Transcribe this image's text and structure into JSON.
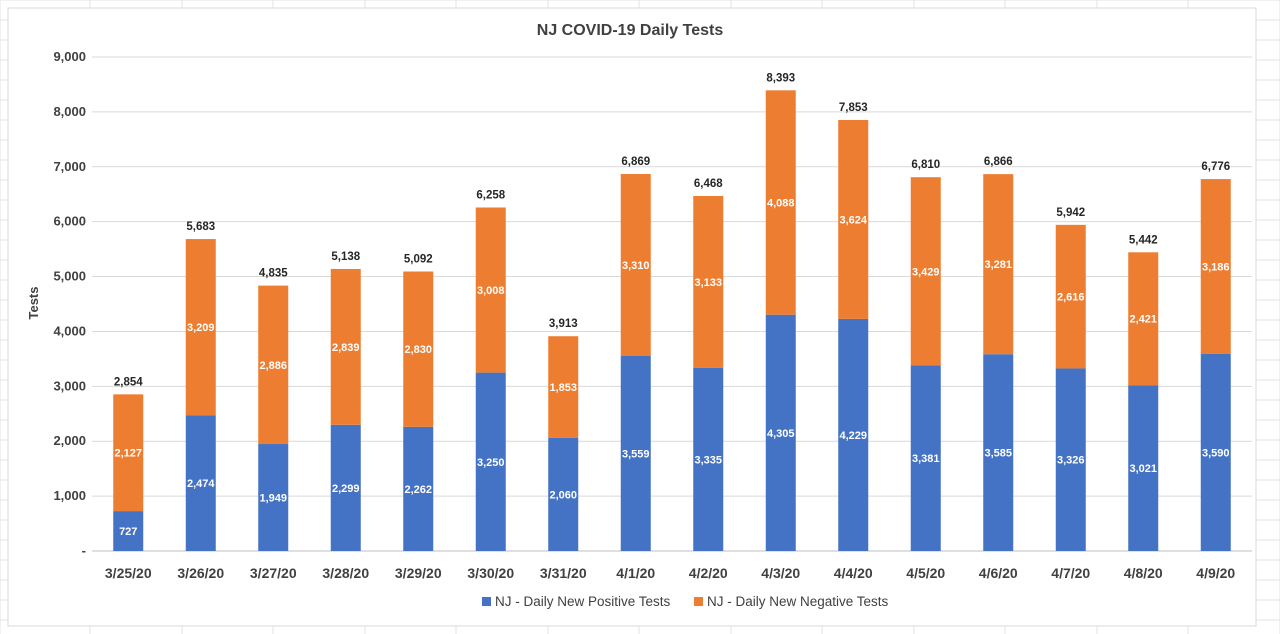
{
  "chart_data": {
    "type": "bar",
    "stacked": true,
    "title": "NJ COVID-19 Daily Tests",
    "xlabel": "",
    "ylabel": "Tests",
    "ylim": [
      0,
      9000
    ],
    "yticks": [
      0,
      1000,
      2000,
      3000,
      4000,
      5000,
      6000,
      7000,
      8000,
      9000
    ],
    "ytick_labels": [
      "-",
      "1,000",
      "2,000",
      "3,000",
      "4,000",
      "5,000",
      "6,000",
      "7,000",
      "8,000",
      "9,000"
    ],
    "grid": true,
    "legend_position": "bottom",
    "categories": [
      "3/25/20",
      "3/26/20",
      "3/27/20",
      "3/28/20",
      "3/29/20",
      "3/30/20",
      "3/31/20",
      "4/1/20",
      "4/2/20",
      "4/3/20",
      "4/4/20",
      "4/5/20",
      "4/6/20",
      "4/7/20",
      "4/8/20",
      "4/9/20"
    ],
    "series": [
      {
        "name": "NJ - Daily New Positive Tests",
        "color": "#4472C4",
        "values": [
          727,
          2474,
          1949,
          2299,
          2262,
          3250,
          2060,
          3559,
          3335,
          4305,
          4229,
          3381,
          3585,
          3326,
          3021,
          3590
        ],
        "labels": [
          "727",
          "2,474",
          "1,949",
          "2,299",
          "2,262",
          "3,250",
          "2,060",
          "3,559",
          "3,335",
          "4,305",
          "4,229",
          "3,381",
          "3,585",
          "3,326",
          "3,021",
          "3,590"
        ]
      },
      {
        "name": "NJ - Daily New Negative Tests",
        "color": "#ED7D31",
        "values": [
          2127,
          3209,
          2886,
          2839,
          2830,
          3008,
          1853,
          3310,
          3133,
          4088,
          3624,
          3429,
          3281,
          2616,
          2421,
          3186
        ],
        "labels": [
          "2,127",
          "3,209",
          "2,886",
          "2,839",
          "2,830",
          "3,008",
          "1,853",
          "3,310",
          "3,133",
          "4,088",
          "3,624",
          "3,429",
          "3,281",
          "2,616",
          "2,421",
          "3,186"
        ]
      }
    ],
    "totals": [
      "2,854",
      "5,683",
      "4,835",
      "5,138",
      "5,092",
      "6,258",
      "3,913",
      "6,869",
      "6,468",
      "8,393",
      "7,853",
      "6,810",
      "6,866",
      "5,942",
      "5,442",
      "6,776"
    ]
  }
}
